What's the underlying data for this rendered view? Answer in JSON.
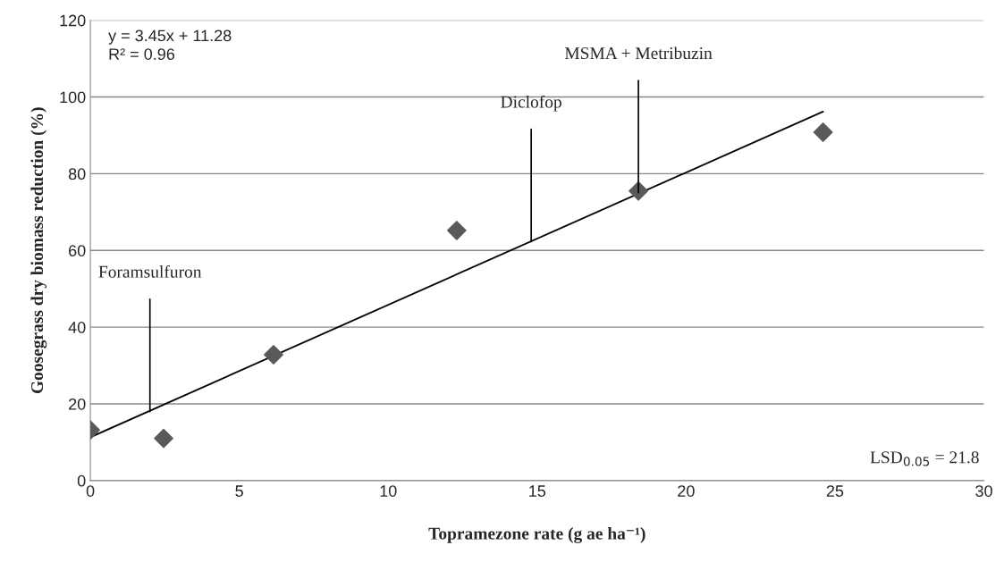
{
  "chart_data": {
    "type": "scatter",
    "xlabel": "Topramezone rate (g ae ha⁻¹)",
    "ylabel": "Goosegrass dry biomass reduction (%)",
    "series": [
      {
        "color": "#595959",
        "marker": "diamond",
        "x": [
          0,
          2.46,
          6.15,
          12.3,
          18.4,
          24.6
        ],
        "values": [
          13.2,
          11.0,
          32.8,
          65.2,
          75.5,
          90.8
        ]
      },
      {
        "type": "line",
        "color": "#000000",
        "marker": "none",
        "line_style": "solid",
        "x": [
          0,
          24.6
        ],
        "values": [
          11.3,
          96.2
        ]
      }
    ],
    "xlim": [
      0,
      30
    ],
    "xticks": [
      0,
      5,
      10,
      15,
      20,
      25,
      30
    ],
    "ylim": [
      0,
      120
    ],
    "yticks": [
      0,
      20,
      40,
      60,
      80,
      100,
      120
    ],
    "grid": "y",
    "legend": false,
    "annotations": [
      "y = 3.45x + 11.28\nR² = 0.96",
      "LSD$_{0.05}$ = 21.8",
      {
        "text": "Foramsulfuron",
        "x": 2.0,
        "y": 18.0
      },
      {
        "text": "Diclofop",
        "x": 14.8,
        "y": 62.3
      },
      {
        "text": "MSMA + Metribuzin",
        "x": 18.4,
        "y": 75.0
      }
    ]
  }
}
